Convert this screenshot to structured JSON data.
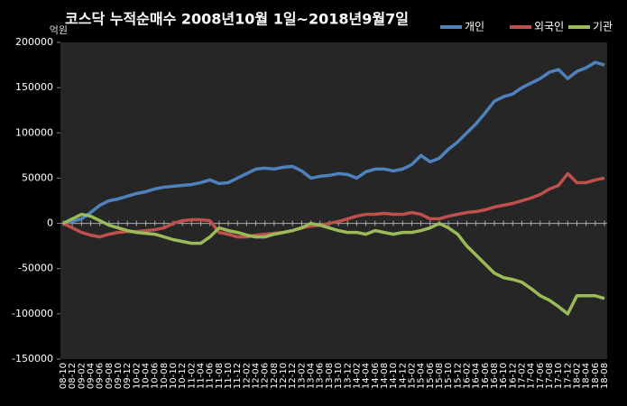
{
  "chart_data": {
    "type": "line",
    "title": "코스닥  누적순매수 2008년10월 1일~2018년9월7일",
    "y_unit": "억원",
    "categories": [
      "08-10",
      "08-12",
      "09-02",
      "09-04",
      "09-06",
      "09-08",
      "09-10",
      "09-12",
      "10-02",
      "10-04",
      "10-06",
      "10-08",
      "10-10",
      "10-12",
      "11-02",
      "11-04",
      "11-06",
      "11-08",
      "11-10",
      "11-12",
      "12-02",
      "12-04",
      "12-06",
      "12-08",
      "12-10",
      "12-12",
      "13-02",
      "13-04",
      "13-06",
      "13-08",
      "13-10",
      "13-12",
      "14-02",
      "14-04",
      "14-06",
      "14-08",
      "14-10",
      "14-12",
      "15-02",
      "15-04",
      "15-06",
      "15-08",
      "15-10",
      "15-12",
      "16-02",
      "16-04",
      "16-06",
      "16-08",
      "16-10",
      "16-12",
      "17-02",
      "17-04",
      "17-06",
      "17-08",
      "17-10",
      "17-12",
      "18-02",
      "18-04",
      "18-06",
      "18-08"
    ],
    "series": [
      {
        "name": "개인",
        "color": "#4f81bd",
        "values": [
          0,
          2000,
          5000,
          12000,
          20000,
          25000,
          27000,
          30000,
          33000,
          35000,
          38000,
          40000,
          41000,
          42000,
          43000,
          45000,
          48000,
          44000,
          45000,
          50000,
          55000,
          60000,
          61000,
          60000,
          62000,
          63000,
          58000,
          50000,
          52000,
          53000,
          55000,
          54000,
          50000,
          57000,
          60000,
          60000,
          58000,
          60000,
          65000,
          75000,
          68000,
          72000,
          82000,
          90000,
          100000,
          110000,
          122000,
          135000,
          140000,
          143000,
          150000,
          155000,
          160000,
          167000,
          170000,
          160000,
          168000,
          172000,
          178000,
          175000
        ]
      },
      {
        "name": "외국인",
        "color": "#c0504d",
        "values": [
          0,
          -5000,
          -10000,
          -13000,
          -15000,
          -12000,
          -10000,
          -9000,
          -9000,
          -8000,
          -7000,
          -5000,
          0,
          3000,
          4000,
          4000,
          3000,
          -10000,
          -12000,
          -15000,
          -15000,
          -13000,
          -12000,
          -11000,
          -10000,
          -8000,
          -5000,
          -3000,
          -2000,
          0,
          2000,
          5000,
          8000,
          10000,
          10000,
          11000,
          10000,
          10000,
          12000,
          10000,
          5000,
          5000,
          8000,
          10000,
          12000,
          13000,
          15000,
          18000,
          20000,
          22000,
          25000,
          28000,
          32000,
          38000,
          42000,
          55000,
          45000,
          45000,
          48000,
          50000
        ]
      },
      {
        "name": "기관",
        "color": "#9bbb59",
        "values": [
          0,
          5000,
          10000,
          8000,
          3000,
          -2000,
          -5000,
          -8000,
          -10000,
          -11000,
          -12000,
          -15000,
          -18000,
          -20000,
          -22000,
          -22000,
          -15000,
          -5000,
          -8000,
          -10000,
          -13000,
          -15000,
          -15000,
          -12000,
          -10000,
          -8000,
          -5000,
          0,
          -2000,
          -5000,
          -8000,
          -10000,
          -10000,
          -12000,
          -8000,
          -10000,
          -12000,
          -10000,
          -10000,
          -8000,
          -5000,
          0,
          -5000,
          -12000,
          -25000,
          -35000,
          -45000,
          -55000,
          -60000,
          -62000,
          -65000,
          -72000,
          -80000,
          -85000,
          -92000,
          -100000,
          -80000,
          -80000,
          -80000,
          -83000
        ]
      }
    ],
    "ylim": [
      -150000,
      200000
    ],
    "yticks": [
      -150000,
      -100000,
      -50000,
      0,
      50000,
      100000,
      150000,
      200000
    ],
    "grid": false,
    "legend": "top-right"
  }
}
